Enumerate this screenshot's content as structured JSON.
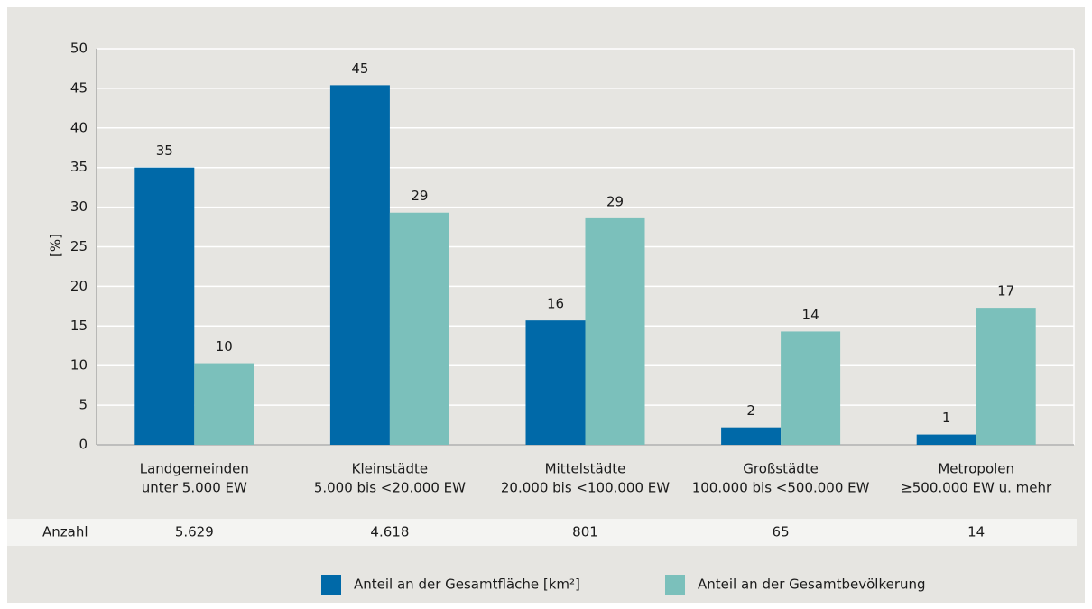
{
  "chart_data": {
    "type": "bar",
    "y_label": "[%]",
    "categories": [
      "Landgemeinden",
      "Kleinstädte",
      "Mittelstädte",
      "Großstädte",
      "Metropolen"
    ],
    "category_sublabels": [
      "unter 5.000 EW",
      "5.000 bis <20.000 EW",
      "20.000 bis <100.000 EW",
      "100.000 bis <500.000 EW",
      "≥500.000 EW u. mehr"
    ],
    "series": [
      {
        "name": "Anteil an der Gesamtfläche [km²]",
        "color": "#0069a8",
        "values": [
          35,
          45.4,
          15.7,
          2.2,
          1.3
        ],
        "value_labels": [
          "35",
          "45",
          "16",
          "2",
          "1"
        ]
      },
      {
        "name": "Anteil an der Gesamtbevölkerung",
        "color": "#7bc0bb",
        "values": [
          10.3,
          29.3,
          28.6,
          14.3,
          17.3
        ],
        "value_labels": [
          "10",
          "29",
          "29",
          "14",
          "17"
        ]
      }
    ],
    "table": {
      "label": "Anzahl",
      "values": [
        "5.629",
        "4.618",
        "801",
        "65",
        "14"
      ]
    },
    "ylim": [
      0,
      50
    ],
    "yticks": [
      0,
      5,
      10,
      15,
      20,
      25,
      30,
      35,
      40,
      45,
      50
    ],
    "grid": true
  }
}
